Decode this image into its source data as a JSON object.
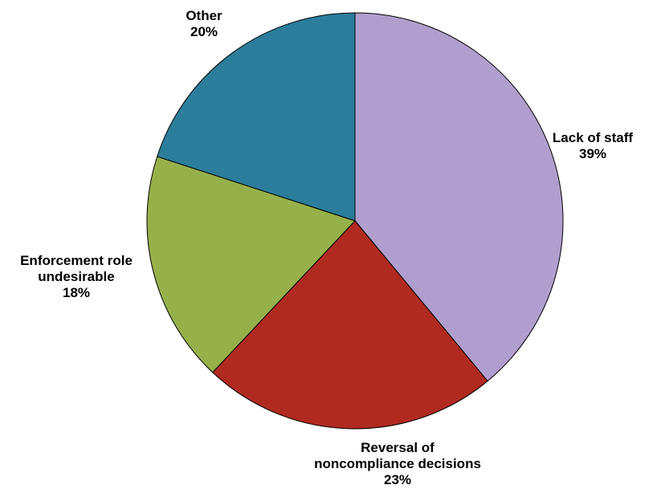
{
  "chart_data": {
    "type": "pie",
    "title": "",
    "start_angle_deg": 0,
    "direction": "clockwise",
    "slices": [
      {
        "label_lines": [
          "Lack of staff"
        ],
        "percent_label": "39%",
        "value": 39,
        "color": "#b09fce"
      },
      {
        "label_lines": [
          "Reversal of",
          "noncompliance decisions"
        ],
        "percent_label": "23%",
        "value": 23,
        "color": "#b12a20"
      },
      {
        "label_lines": [
          "Enforcement role",
          "undesirable"
        ],
        "percent_label": "18%",
        "value": 18,
        "color": "#97b14a"
      },
      {
        "label_lines": [
          "Other"
        ],
        "percent_label": "20%",
        "value": 20,
        "color": "#2b7d9b"
      }
    ]
  }
}
